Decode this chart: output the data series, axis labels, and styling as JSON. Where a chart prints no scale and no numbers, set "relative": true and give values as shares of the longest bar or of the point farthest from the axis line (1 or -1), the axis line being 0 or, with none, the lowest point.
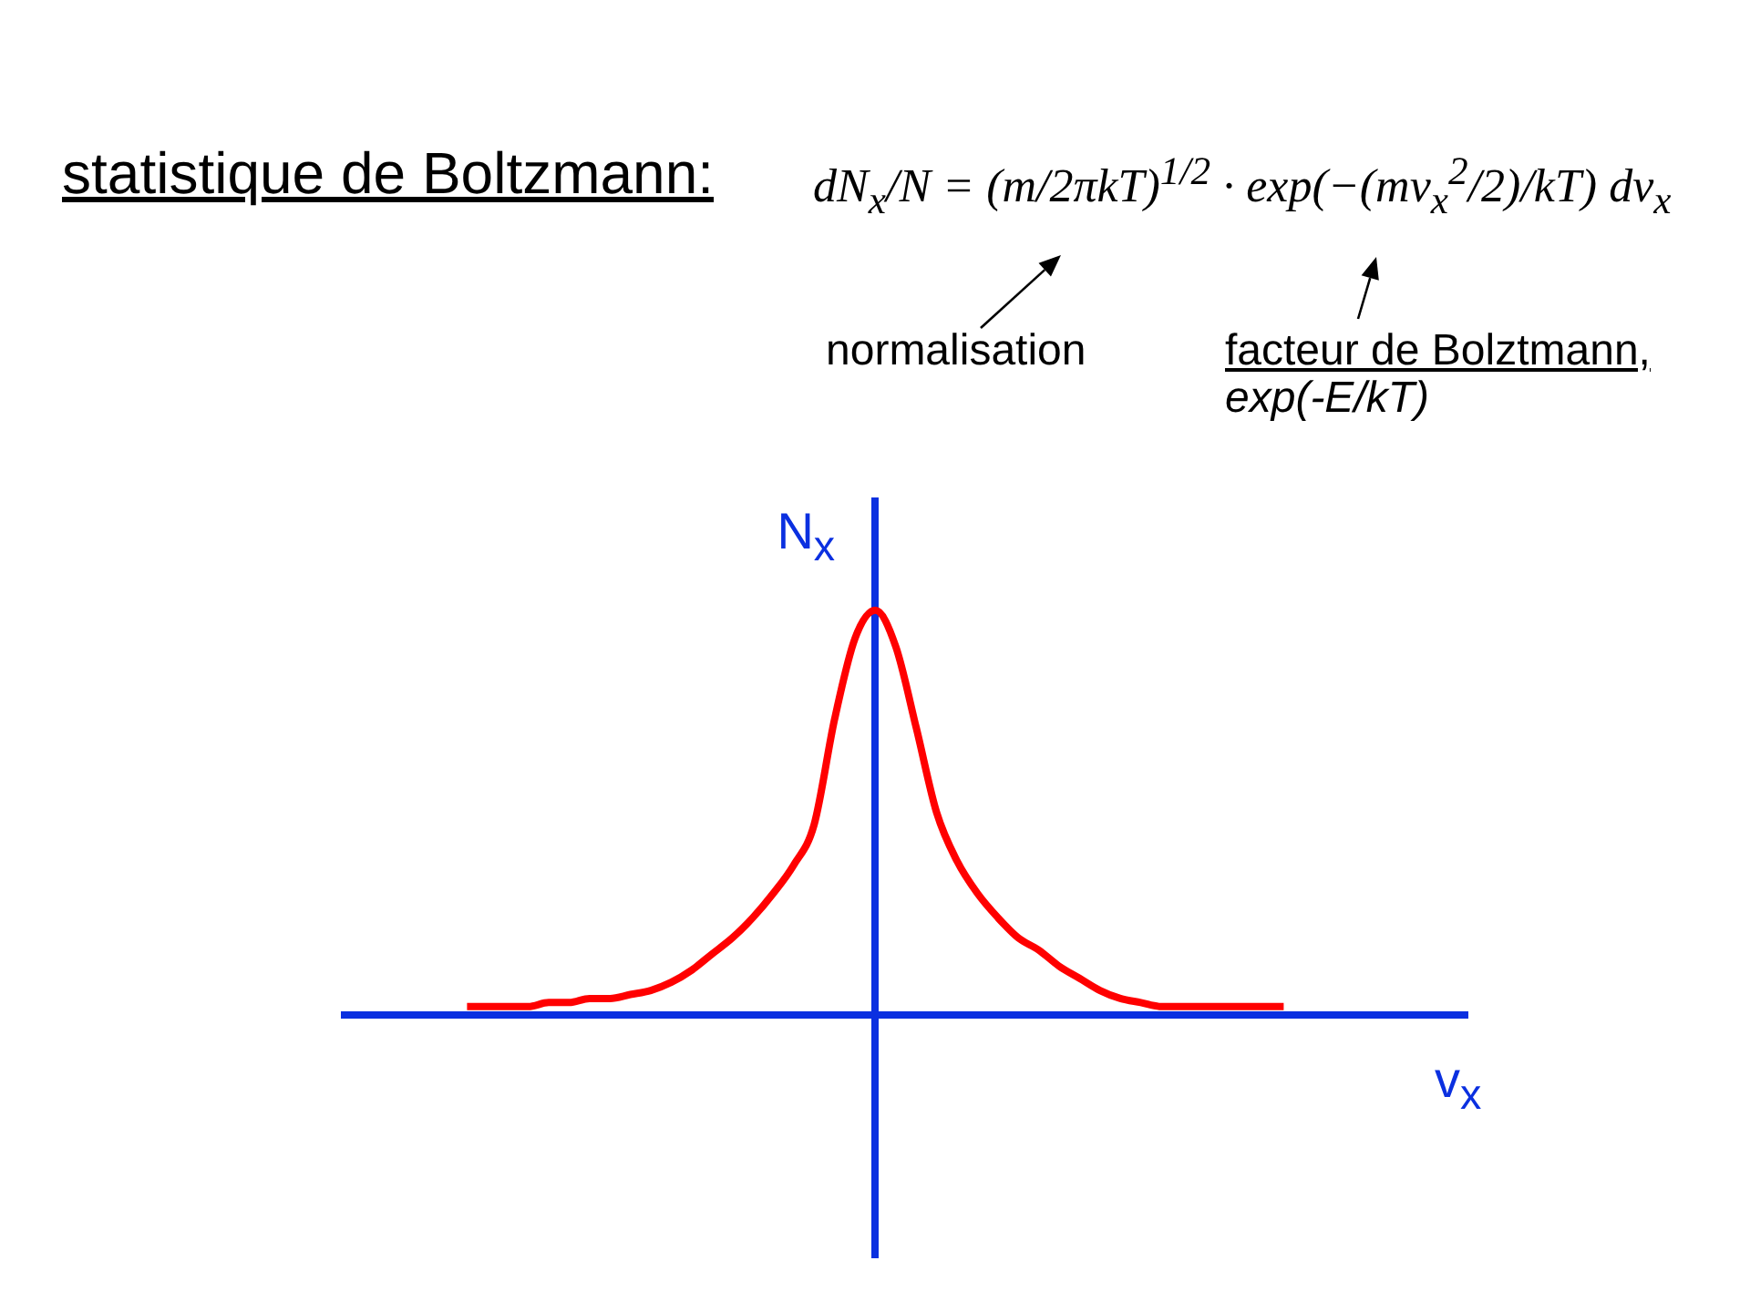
{
  "chart_data": {
    "type": "line",
    "title": "statistique de Boltzmann:",
    "subtitle": "dN$_{x}$/N = (m/2πkT)$^{1/2}$ · exp(−(mv$_{x}$$^{2}$/2)/kT) dv$_{x}$",
    "xlabel": "v$_{x}$",
    "ylabel": "N$_{x}$",
    "annotations": [
      "normalisation",
      "facteur de Bolztmann,",
      "exp(-E/kT)"
    ],
    "relative": true,
    "color": "#ff0000",
    "categories": [
      null,
      null,
      null,
      null,
      null,
      null,
      null,
      null,
      null,
      null,
      null,
      null,
      null,
      null,
      null,
      null,
      null,
      null,
      null,
      null,
      null,
      null,
      null,
      null,
      null,
      null,
      null,
      null,
      null,
      null,
      null,
      null,
      null,
      null,
      null,
      null,
      null,
      null,
      null,
      null,
      null,
      null,
      null,
      null,
      null,
      null,
      null,
      null,
      null,
      null,
      null,
      null,
      null,
      null,
      null,
      null
    ],
    "values": [
      null,
      null,
      null,
      null,
      null,
      null,
      0.02,
      0.02,
      0.02,
      0.02,
      0.03,
      0.03,
      0.04,
      0.04,
      0.05,
      0.06,
      0.08,
      0.11,
      0.15,
      0.19,
      0.24,
      0.3,
      0.37,
      0.47,
      0.73,
      0.93,
      1,
      0.91,
      0.71,
      0.5,
      0.38,
      0.3,
      0.24,
      0.19,
      0.16,
      0.12,
      0.09,
      0.06,
      0.04,
      0.03,
      0.02,
      0.02,
      0.02,
      0.02,
      0.02,
      0.02,
      0.02,
      null,
      null,
      null,
      null,
      null,
      null,
      null,
      null,
      null
    ]
  }
}
